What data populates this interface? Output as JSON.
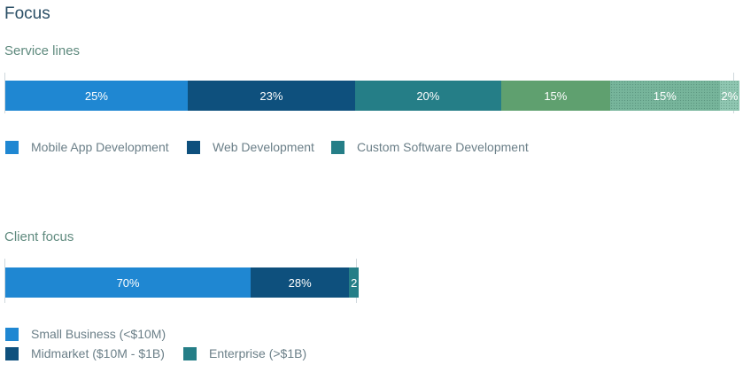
{
  "page_title": "Focus",
  "service_lines": {
    "title": "Service lines",
    "segments": [
      {
        "label": "25%",
        "value": 25,
        "color": "#1f87d2"
      },
      {
        "label": "23%",
        "value": 23,
        "color": "#0e507d"
      },
      {
        "label": "20%",
        "value": 20,
        "color": "#257e87"
      },
      {
        "label": "15%",
        "value": 15,
        "color": "#5fa06f"
      },
      {
        "label": "15%",
        "value": 15,
        "color": "#77b59b",
        "pattern": "dotted"
      },
      {
        "label": "2%",
        "value": 2,
        "color": "#8fc6b1",
        "pattern": "dotted"
      }
    ],
    "legend": [
      {
        "label": "Mobile App Development",
        "color": "#1f87d2"
      },
      {
        "label": "Web Development",
        "color": "#0e507d"
      },
      {
        "label": "Custom Software Development",
        "color": "#257e87"
      }
    ]
  },
  "client_focus": {
    "title": "Client focus",
    "segments": [
      {
        "label": "70%",
        "value": 70,
        "color": "#1f87d2"
      },
      {
        "label": "28%",
        "value": 28,
        "color": "#0e507d"
      },
      {
        "label": "2",
        "value": 2,
        "color": "#257e87"
      }
    ],
    "legend": [
      {
        "label": "Small Business (<$10M)",
        "color": "#1f87d2"
      },
      {
        "label": "Midmarket ($10M - $1B)",
        "color": "#0e507d"
      },
      {
        "label": "Enterprise (>$1B)",
        "color": "#257e87"
      }
    ]
  }
}
